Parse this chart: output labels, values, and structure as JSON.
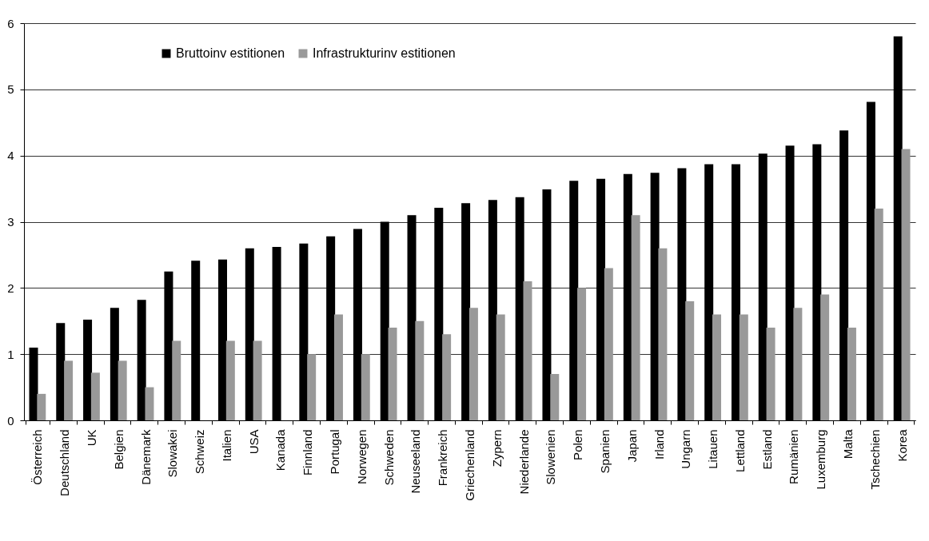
{
  "chart_data": {
    "type": "bar",
    "categories": [
      "Österreich",
      "Deutschland",
      "UK",
      "Belgien",
      "Dänemark",
      "Slowakei",
      "Schweiz",
      "Italien",
      "USA",
      "Kanada",
      "Finnland",
      "Portugal",
      "Norwegen",
      "Schweden",
      "Neuseeland",
      "Frankreich",
      "Griechenland",
      "Zypern",
      "Niederlande",
      "Slowenien",
      "Polen",
      "Spanien",
      "Japan",
      "Irland",
      "Ungarn",
      "Litauen",
      "Lettland",
      "Estland",
      "Rumänien",
      "Luxemburg",
      "Malta",
      "Tschechien",
      "Korea"
    ],
    "series": [
      {
        "name": "Bruttoinv estitionen",
        "color": "#000000",
        "values": [
          1.1,
          1.47,
          1.52,
          1.7,
          1.82,
          2.25,
          2.41,
          2.43,
          2.6,
          2.62,
          2.67,
          2.78,
          2.89,
          3.0,
          3.1,
          3.21,
          3.28,
          3.33,
          3.37,
          3.49,
          3.62,
          3.65,
          3.72,
          3.74,
          3.81,
          3.87,
          3.87,
          4.03,
          4.15,
          4.17,
          4.38,
          4.81,
          5.8
        ]
      },
      {
        "name": "Infrastrukturinv estitionen",
        "color": "#999999",
        "values": [
          0.4,
          0.9,
          0.72,
          0.9,
          0.5,
          1.2,
          null,
          1.2,
          1.2,
          null,
          1.0,
          1.6,
          1.0,
          1.4,
          1.5,
          1.3,
          1.7,
          1.6,
          2.1,
          0.7,
          2.0,
          2.3,
          3.1,
          2.6,
          1.8,
          1.6,
          1.6,
          1.4,
          1.7,
          1.9,
          1.4,
          3.2,
          4.1
        ]
      }
    ],
    "ylim": [
      0,
      6
    ],
    "yticks": [
      0,
      1,
      2,
      3,
      4,
      5,
      6
    ],
    "grid": "y",
    "legend": "top left"
  }
}
